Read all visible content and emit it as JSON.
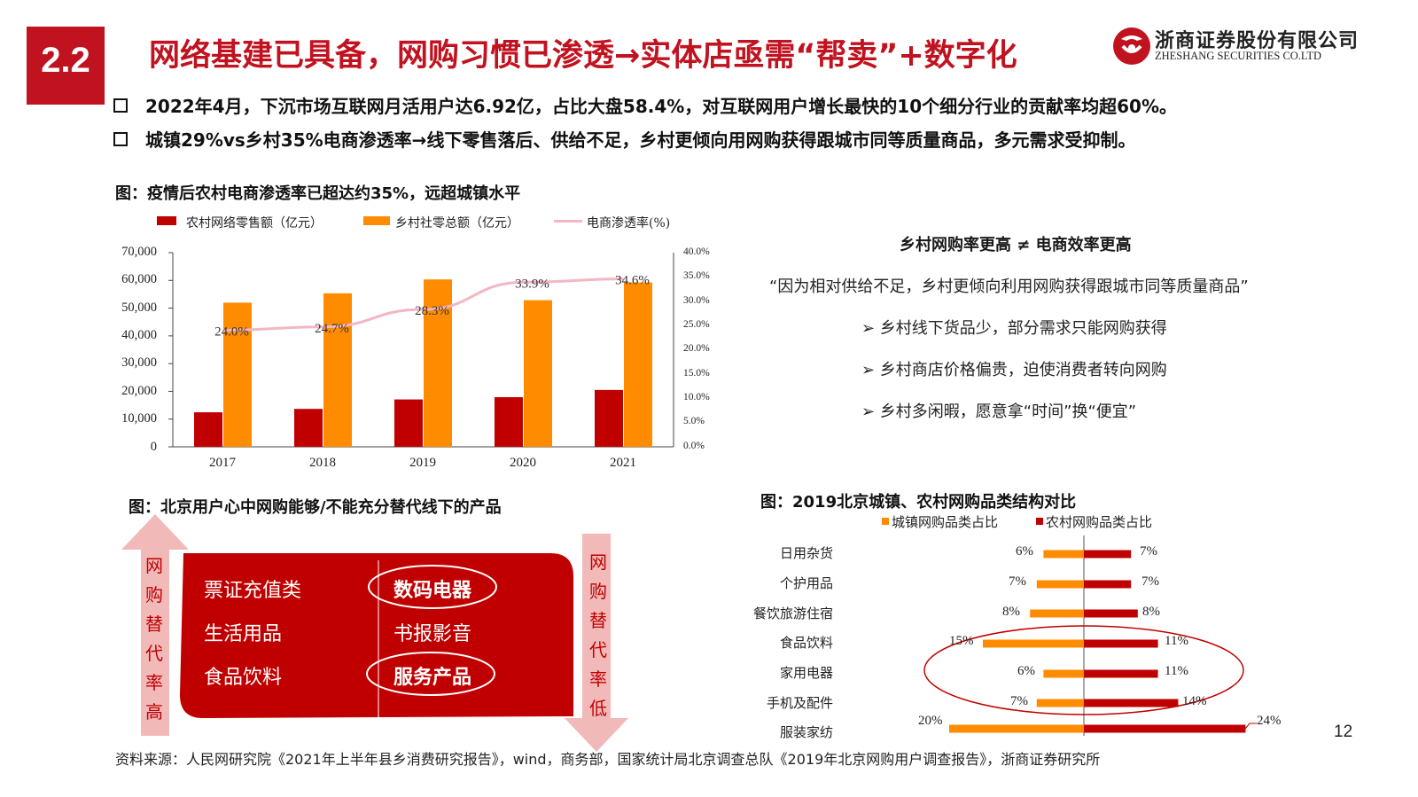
{
  "header": {
    "section_number": "2.2",
    "title": "网络基建已具备，网购习惯已渗透→实体店亟需“帮卖”+数字化",
    "company_cn": "浙商证券股份有限公司",
    "company_en": "ZHESHANG SECURITIES CO.LTD"
  },
  "bullets": [
    "2022年4月，下沉市场互联网月活用户达6.92亿，占比大盘58.4%，对互联网用户增长最快的10个细分行业的贡献率均超60%。",
    "城镇29%vs乡村35%电商渗透率→线下零售落后、供给不足，乡村更倾向用网购获得跟城市同等质量商品，多元需求受抑制。"
  ],
  "chart1": {
    "caption": "图：疫情后农村电商渗透率已超达约35%，远超城镇水平",
    "legend": [
      "农村网络零售额（亿元）",
      "乡村社零总额（亿元）",
      "电商渗透率(%)"
    ],
    "y_ticks": [
      "70,000",
      "60,000",
      "50,000",
      "40,000",
      "30,000",
      "20,000",
      "10,000",
      "0"
    ],
    "y2_ticks": [
      "40.0%",
      "35.0%",
      "30.0%",
      "25.0%",
      "20.0%",
      "15.0%",
      "10.0%",
      "5.0%",
      "0.0%"
    ],
    "rate_labels": [
      "24.0%",
      "24.7%",
      "28.3%",
      "33.9%",
      "34.6%"
    ],
    "colors": {
      "online": "#c00000",
      "total": "#ff8c00",
      "rate": "#f4b6c2"
    }
  },
  "chart_data": [
    {
      "type": "bar",
      "categories": [
        "2017",
        "2018",
        "2019",
        "2020",
        "2021"
      ],
      "series": [
        {
          "name": "农村网络零售额（亿元）",
          "values": [
            12448,
            13679,
            17083,
            17900,
            20500
          ]
        },
        {
          "name": "乡村社零总额（亿元）",
          "values": [
            51972,
            55350,
            60350,
            52862,
            59265
          ]
        },
        {
          "name": "电商渗透率(%)",
          "values": [
            24.0,
            24.7,
            28.3,
            33.9,
            34.6
          ],
          "axis": "right",
          "kind": "line"
        }
      ],
      "ylim": [
        0,
        70000
      ],
      "y2lim": [
        0,
        40
      ]
    },
    {
      "type": "bar",
      "categories": [
        "日用杂货",
        "个护用品",
        "餐饮旅游住宿",
        "食品饮料",
        "家用电器",
        "手机及配件",
        "服装家纺"
      ],
      "series": [
        {
          "name": "城镇网购品类占比",
          "values": [
            6,
            7,
            8,
            15,
            6,
            7,
            20
          ]
        },
        {
          "name": "农村网购品类占比",
          "values": [
            7,
            7,
            8,
            11,
            11,
            14,
            24
          ]
        }
      ]
    }
  ],
  "right_panel": {
    "title": "乡村网购率更高 ≠ 电商效率更高",
    "quote": "“因为相对供给不足，乡村更倾向利用网购获得跟城市同等质量商品”",
    "points": [
      "乡村线下货品少，部分需求只能网购获得",
      "乡村商店价格偏贵，迫使消费者转向网购",
      "乡村多闲暇，愿意拿“时间”换“便宜”"
    ]
  },
  "chart2": {
    "caption": "图：北京用户心中网购能够/不能充分替代线下的产品",
    "left_arrow": "网购替代率高",
    "right_arrow": "网购替代率低",
    "left_items": [
      "票证充值类",
      "生活用品",
      "食品饮料"
    ],
    "right_items": [
      "数码电器",
      "书报影音",
      "服务产品"
    ]
  },
  "chart3": {
    "caption": "图：2019北京城镇、农村网购品类结构对比",
    "legend": [
      "城镇网购品类占比",
      "农村网购品类占比"
    ],
    "urban_labels": [
      "6%",
      "7%",
      "8%",
      "15%",
      "6%",
      "7%",
      "20%"
    ],
    "rural_labels": [
      "7%",
      "7%",
      "8%",
      "11%",
      "11%",
      "14%",
      "24%"
    ],
    "colors": {
      "urban": "#ff8c00",
      "rural": "#c00000"
    }
  },
  "footer": {
    "source": "资料来源：人民网研究院《2021年上半年县乡消费研究报告》，wind，商务部，国家统计局北京调查总队《2019年北京网购用户调查报告》，浙商证券研究所",
    "page_number": "12"
  }
}
